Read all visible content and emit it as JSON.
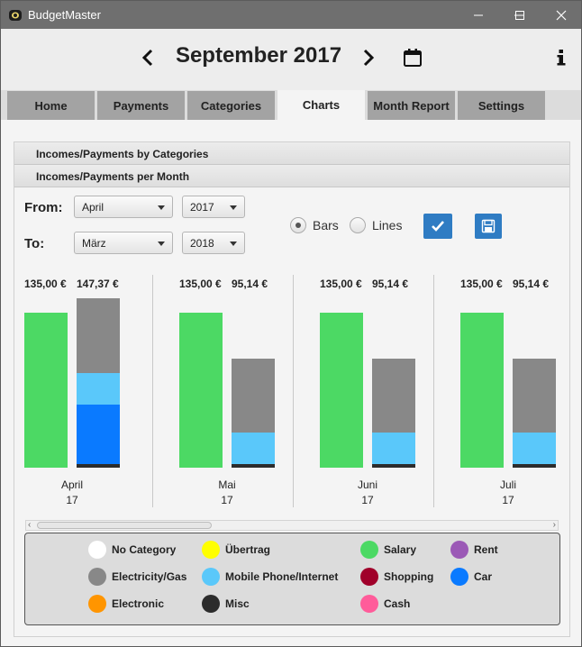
{
  "app": {
    "title": "BudgetMaster"
  },
  "header": {
    "month": "September 2017"
  },
  "tabs": [
    {
      "label": "Home"
    },
    {
      "label": "Payments"
    },
    {
      "label": "Categories"
    },
    {
      "label": "Charts"
    },
    {
      "label": "Month Report"
    },
    {
      "label": "Settings"
    }
  ],
  "accordion": {
    "categories": "Incomes/Payments by Categories",
    "per_month": "Incomes/Payments per Month"
  },
  "filters": {
    "from_label": "From:",
    "to_label": "To:",
    "from_month": "April",
    "from_year": "2017",
    "to_month": "März",
    "to_year": "2018",
    "bars_label": "Bars",
    "lines_label": "Lines",
    "selected": "Bars"
  },
  "colors": {
    "income": "#4cd964",
    "accent": "#2f7cc3"
  },
  "chart_data": {
    "type": "bar",
    "categories": [
      "April 17",
      "Mai 17",
      "Juni 17",
      "Juli 17"
    ],
    "months": [
      {
        "month": "April",
        "year": "17",
        "income_label": "135,00 €",
        "payment_label": "147,37 €",
        "income": 135.0,
        "payment": 147.37,
        "payment_breakdown": [
          {
            "category": "Misc",
            "value": 3.0
          },
          {
            "category": "Car",
            "value": 52.0
          },
          {
            "category": "Mobile Phone/Internet",
            "value": 27.5
          },
          {
            "category": "Electricity/Gas",
            "value": 64.87
          }
        ]
      },
      {
        "month": "Mai",
        "year": "17",
        "income_label": "135,00 €",
        "payment_label": "95,14 €",
        "income": 135.0,
        "payment": 95.14,
        "payment_breakdown": [
          {
            "category": "Misc",
            "value": 3.0
          },
          {
            "category": "Mobile Phone/Internet",
            "value": 27.5
          },
          {
            "category": "Electricity/Gas",
            "value": 64.64
          }
        ]
      },
      {
        "month": "Juni",
        "year": "17",
        "income_label": "135,00 €",
        "payment_label": "95,14 €",
        "income": 135.0,
        "payment": 95.14,
        "payment_breakdown": [
          {
            "category": "Misc",
            "value": 3.0
          },
          {
            "category": "Mobile Phone/Internet",
            "value": 27.5
          },
          {
            "category": "Electricity/Gas",
            "value": 64.64
          }
        ]
      },
      {
        "month": "Juli",
        "year": "17",
        "income_label": "135,00 €",
        "payment_label": "95,14 €",
        "income": 135.0,
        "payment": 95.14,
        "payment_breakdown": [
          {
            "category": "Misc",
            "value": 3.0
          },
          {
            "category": "Mobile Phone/Internet",
            "value": 27.5
          },
          {
            "category": "Electricity/Gas",
            "value": 64.64
          }
        ]
      }
    ],
    "legend": [
      {
        "name": "No Category",
        "color": "#ffffff"
      },
      {
        "name": "Übertrag",
        "color": "#ffff00"
      },
      {
        "name": "Salary",
        "color": "#4cd964"
      },
      {
        "name": "Rent",
        "color": "#9b59b6"
      },
      {
        "name": "Electricity/Gas",
        "color": "#888888"
      },
      {
        "name": "Mobile Phone/Internet",
        "color": "#5ac8fa"
      },
      {
        "name": "Shopping",
        "color": "#a0002a"
      },
      {
        "name": "Car",
        "color": "#0a7aff"
      },
      {
        "name": "Electronic",
        "color": "#ff9500"
      },
      {
        "name": "Misc",
        "color": "#2c2c2c"
      },
      {
        "name": "Cash",
        "color": "#ff5c9a"
      }
    ]
  }
}
